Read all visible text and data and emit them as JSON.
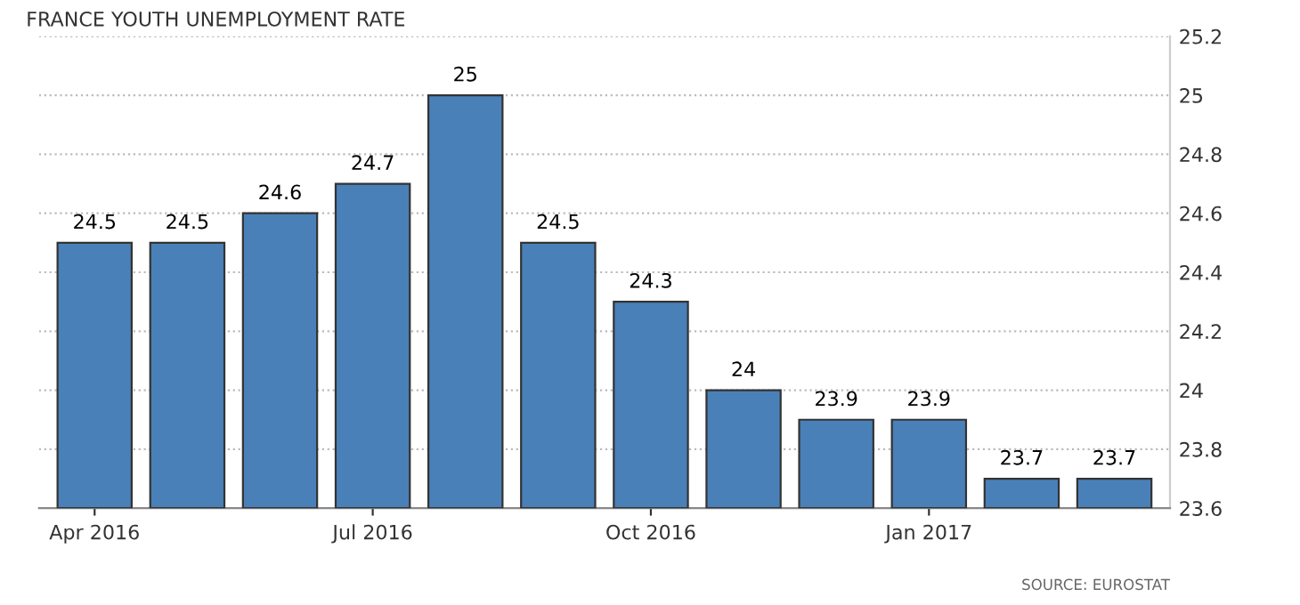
{
  "chart_data": {
    "type": "bar",
    "title": "FRANCE YOUTH UNEMPLOYMENT RATE",
    "categories": [
      "Apr 2016",
      null,
      null,
      "Jul 2016",
      null,
      null,
      "Oct 2016",
      null,
      null,
      "Jan 2017",
      null,
      null
    ],
    "values": [
      24.5,
      24.5,
      24.6,
      24.7,
      25,
      24.5,
      24.3,
      24,
      23.9,
      23.9,
      23.7,
      23.7
    ],
    "color": "#4a80b8",
    "ylim": [
      23.6,
      25.2
    ],
    "yticks": [
      23.6,
      23.8,
      24,
      24.2,
      24.4,
      24.6,
      24.8,
      25,
      25.2
    ],
    "grid": "y",
    "data_labels": true,
    "annotations": [
      "SOURCE: EUROSTAT"
    ]
  }
}
